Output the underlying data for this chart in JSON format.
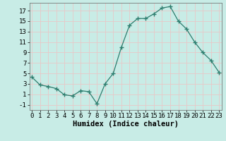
{
  "x": [
    0,
    1,
    2,
    3,
    4,
    5,
    6,
    7,
    8,
    9,
    10,
    11,
    12,
    13,
    14,
    15,
    16,
    17,
    18,
    19,
    20,
    21,
    22,
    23
  ],
  "y": [
    4.3,
    2.8,
    2.5,
    2.1,
    0.9,
    0.7,
    1.7,
    1.5,
    -0.8,
    3.0,
    5.0,
    10.0,
    14.2,
    15.5,
    15.5,
    16.4,
    17.5,
    17.8,
    15.0,
    13.5,
    11.0,
    9.0,
    7.5,
    5.2
  ],
  "line_color": "#2d7d6e",
  "marker": "+",
  "marker_size": 4,
  "background_color": "#c8ece6",
  "grid_color": "#e8c8c8",
  "xlabel": "Humidex (Indice chaleur)",
  "xlabel_fontsize": 7.5,
  "yticks": [
    -1,
    1,
    3,
    5,
    7,
    9,
    11,
    13,
    15,
    17
  ],
  "xticks": [
    0,
    1,
    2,
    3,
    4,
    5,
    6,
    7,
    8,
    9,
    10,
    11,
    12,
    13,
    14,
    15,
    16,
    17,
    18,
    19,
    20,
    21,
    22,
    23
  ],
  "ylim": [
    -2.0,
    18.5
  ],
  "xlim": [
    -0.3,
    23.3
  ],
  "tick_fontsize": 6.5,
  "lw": 0.9
}
